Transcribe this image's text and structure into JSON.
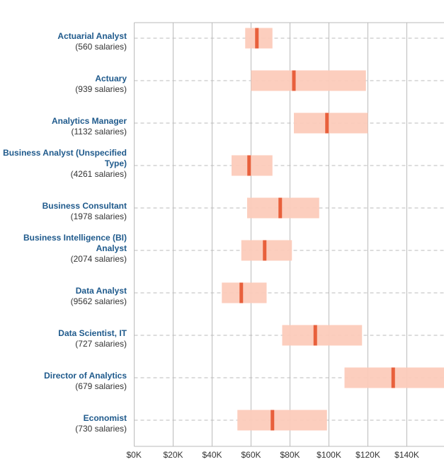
{
  "chart_data": {
    "type": "range-bar",
    "title": "",
    "xlabel": "",
    "ylabel": "",
    "xlim": [
      0,
      160000
    ],
    "x_ticks": [
      0,
      20000,
      40000,
      60000,
      80000,
      100000,
      120000,
      140000
    ],
    "x_tick_labels": [
      "$0K",
      "$20K",
      "$40K",
      "$60K",
      "$80K",
      "$100K",
      "$120K",
      "$140K"
    ],
    "grid": true,
    "legend": "none",
    "colors": {
      "range": "#fccbba",
      "median": "#e8603c",
      "title": "#1f5a8c",
      "count": "#333333",
      "grid": "#bbbbbb",
      "dash": "#bbbbbb"
    },
    "categories": [
      {
        "title_lines": [
          "Actuarial Analyst"
        ],
        "count_label": "(560 salaries)",
        "low": 57000,
        "median": 63000,
        "high": 71000
      },
      {
        "title_lines": [
          "Actuary"
        ],
        "count_label": "(939 salaries)",
        "low": 60000,
        "median": 82000,
        "high": 119000
      },
      {
        "title_lines": [
          "Analytics Manager"
        ],
        "count_label": "(1132 salaries)",
        "low": 82000,
        "median": 99000,
        "high": 120000
      },
      {
        "title_lines": [
          "Business Analyst (Unspecified",
          "Type)"
        ],
        "count_label": "(4261 salaries)",
        "low": 50000,
        "median": 59000,
        "high": 71000
      },
      {
        "title_lines": [
          "Business Consultant"
        ],
        "count_label": "(1978 salaries)",
        "low": 58000,
        "median": 75000,
        "high": 95000
      },
      {
        "title_lines": [
          "Business Intelligence (BI)",
          "Analyst"
        ],
        "count_label": "(2074 salaries)",
        "low": 55000,
        "median": 67000,
        "high": 81000
      },
      {
        "title_lines": [
          "Data Analyst"
        ],
        "count_label": "(9562 salaries)",
        "low": 45000,
        "median": 55000,
        "high": 68000
      },
      {
        "title_lines": [
          "Data Scientist, IT"
        ],
        "count_label": "(727 salaries)",
        "low": 76000,
        "median": 93000,
        "high": 117000
      },
      {
        "title_lines": [
          "Director of Analytics"
        ],
        "count_label": "(679 salaries)",
        "low": 108000,
        "median": 133000,
        "high": 160000
      },
      {
        "title_lines": [
          "Economist"
        ],
        "count_label": "(730 salaries)",
        "low": 53000,
        "median": 71000,
        "high": 99000
      }
    ]
  }
}
